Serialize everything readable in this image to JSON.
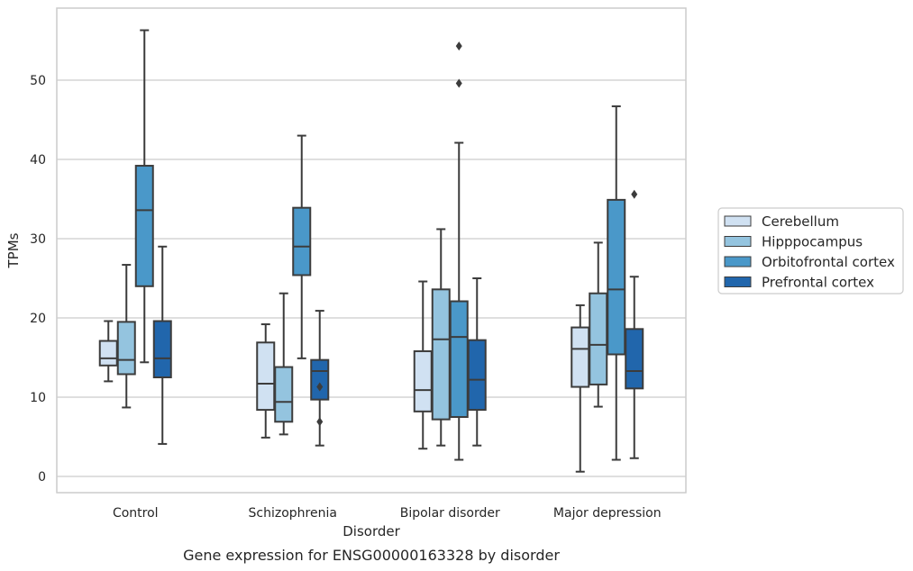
{
  "chart_data": {
    "type": "box",
    "title": "",
    "caption": "Gene expression for ENSG00000163328 by disorder",
    "xlabel": "Disorder",
    "ylabel": "TPMs",
    "ylim": [
      -2,
      59.2
    ],
    "yticks": [
      0,
      10,
      20,
      30,
      40,
      50
    ],
    "grid": "horizontal",
    "legend_position": "right",
    "categories": [
      "Control",
      "Schizophrenia",
      "Bipolar disorder",
      "Major depression"
    ],
    "series": [
      {
        "name": "Cerebellum",
        "color": "#d0e1f2",
        "boxes": [
          {
            "whislo": 12.0,
            "q1": 14.0,
            "med": 14.9,
            "q3": 17.1,
            "whishi": 19.6,
            "fliers": []
          },
          {
            "whislo": 4.9,
            "q1": 8.4,
            "med": 11.7,
            "q3": 16.9,
            "whishi": 19.2,
            "fliers": []
          },
          {
            "whislo": 3.5,
            "q1": 8.2,
            "med": 10.9,
            "q3": 15.8,
            "whishi": 24.6,
            "fliers": []
          },
          {
            "whislo": 0.6,
            "q1": 11.3,
            "med": 16.1,
            "q3": 18.8,
            "whishi": 21.6,
            "fliers": []
          }
        ]
      },
      {
        "name": "Hipppocampus",
        "color": "#94c4df",
        "boxes": [
          {
            "whislo": 8.7,
            "q1": 12.9,
            "med": 14.7,
            "q3": 19.5,
            "whishi": 26.7,
            "fliers": []
          },
          {
            "whislo": 5.3,
            "q1": 6.9,
            "med": 9.4,
            "q3": 13.8,
            "whishi": 23.1,
            "fliers": []
          },
          {
            "whislo": 3.9,
            "q1": 7.2,
            "med": 17.3,
            "q3": 23.6,
            "whishi": 31.2,
            "fliers": []
          },
          {
            "whislo": 8.8,
            "q1": 11.6,
            "med": 16.6,
            "q3": 23.1,
            "whishi": 29.5,
            "fliers": []
          }
        ]
      },
      {
        "name": "Orbitofrontal cortex",
        "color": "#4a98c9",
        "boxes": [
          {
            "whislo": 14.4,
            "q1": 24.0,
            "med": 33.6,
            "q3": 39.2,
            "whishi": 56.3,
            "fliers": []
          },
          {
            "whislo": 14.9,
            "q1": 25.4,
            "med": 29.0,
            "q3": 33.9,
            "whishi": 43.0,
            "fliers": []
          },
          {
            "whislo": 2.1,
            "q1": 7.5,
            "med": 17.6,
            "q3": 22.1,
            "whishi": 42.1,
            "fliers": [
              49.6,
              54.3
            ]
          },
          {
            "whislo": 2.1,
            "q1": 15.4,
            "med": 23.6,
            "q3": 34.9,
            "whishi": 46.7,
            "fliers": []
          }
        ]
      },
      {
        "name": "Prefrontal cortex",
        "color": "#2166ac",
        "boxes": [
          {
            "whislo": 4.1,
            "q1": 12.5,
            "med": 14.9,
            "q3": 19.6,
            "whishi": 29.0,
            "fliers": []
          },
          {
            "whislo": 3.9,
            "q1": 9.7,
            "med": 13.3,
            "q3": 14.7,
            "whishi": 20.9,
            "fliers": [
              6.9,
              11.3
            ]
          },
          {
            "whislo": 3.9,
            "q1": 8.4,
            "med": 12.2,
            "q3": 17.2,
            "whishi": 25.0,
            "fliers": []
          },
          {
            "whislo": 2.3,
            "q1": 11.1,
            "med": 13.3,
            "q3": 18.6,
            "whishi": 25.2,
            "fliers": [
              35.6
            ]
          }
        ]
      }
    ]
  }
}
